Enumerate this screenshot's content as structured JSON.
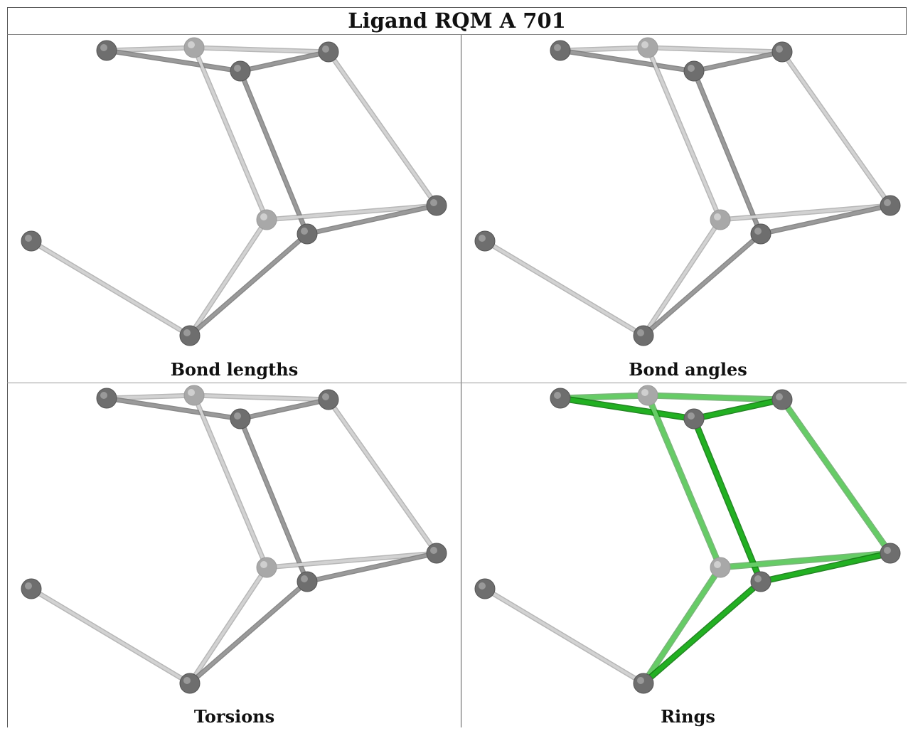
{
  "title": "Ligand RQM A 701",
  "panels": [
    {
      "caption": "Bond lengths",
      "highlight": "none"
    },
    {
      "caption": "Bond angles",
      "highlight": "none"
    },
    {
      "caption": "Torsions",
      "highlight": "none"
    },
    {
      "caption": "Rings",
      "highlight": "rings"
    }
  ],
  "colors": {
    "atom": "#6e6e6e",
    "atom_light": "#a8a8a8",
    "bond": "#9a9a9a",
    "bond_light": "#d2d2d2",
    "ring_bond": "#22b022",
    "ring_bond_light": "#66cc66",
    "border": "#555555"
  }
}
